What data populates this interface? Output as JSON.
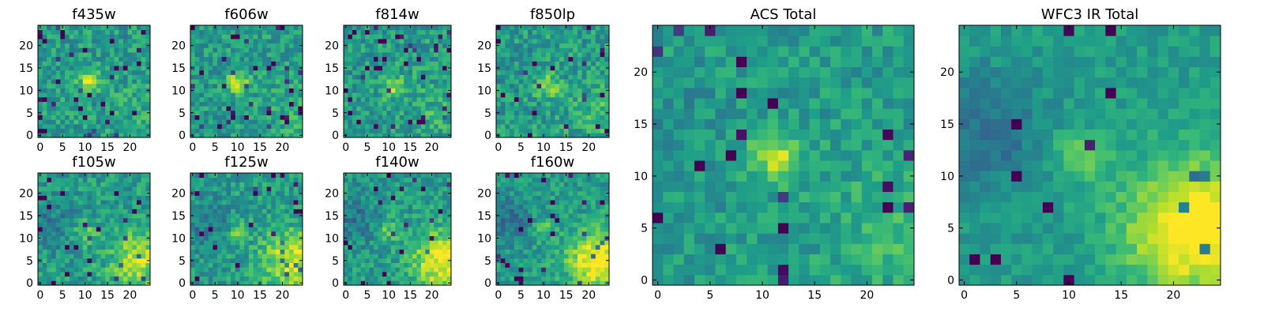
{
  "figure": {
    "colormap": "viridis",
    "image_size": 25
  },
  "chart_data": [
    {
      "type": "heatmap",
      "title": "f435w",
      "xticks": [
        0,
        5,
        10,
        15,
        20
      ],
      "yticks": [
        0,
        5,
        10,
        15,
        20
      ],
      "xlim": [
        0,
        25
      ],
      "ylim": [
        0,
        25
      ],
      "noise": 0.16,
      "bright_spot": [
        11,
        12
      ],
      "bright_strength": 0.35,
      "gradient": 0.05,
      "dark_pixels": 0.05,
      "seed": 11
    },
    {
      "type": "heatmap",
      "title": "f606w",
      "xticks": [
        0,
        5,
        10,
        15,
        20
      ],
      "yticks": [
        0,
        5,
        10,
        15,
        20
      ],
      "xlim": [
        0,
        25
      ],
      "ylim": [
        0,
        25
      ],
      "noise": 0.15,
      "bright_spot": [
        10,
        12
      ],
      "bright_strength": 0.35,
      "gradient": 0.06,
      "dark_pixels": 0.05,
      "seed": 22
    },
    {
      "type": "heatmap",
      "title": "f814w",
      "xticks": [
        0,
        5,
        10,
        15,
        20
      ],
      "yticks": [
        0,
        5,
        10,
        15,
        20
      ],
      "xlim": [
        0,
        25
      ],
      "ylim": [
        0,
        25
      ],
      "noise": 0.16,
      "bright_spot": [
        11,
        11
      ],
      "bright_strength": 0.3,
      "gradient": 0.08,
      "dark_pixels": 0.05,
      "seed": 33
    },
    {
      "type": "heatmap",
      "title": "f850lp",
      "xticks": [
        0,
        5,
        10,
        15,
        20
      ],
      "yticks": [
        0,
        5,
        10,
        15,
        20
      ],
      "xlim": [
        0,
        25
      ],
      "ylim": [
        0,
        25
      ],
      "noise": 0.16,
      "bright_spot": [
        11,
        11
      ],
      "bright_strength": 0.3,
      "gradient": 0.12,
      "dark_pixels": 0.05,
      "seed": 44
    },
    {
      "type": "heatmap",
      "title": "f105w",
      "xticks": [
        0,
        5,
        10,
        15,
        20
      ],
      "yticks": [
        0,
        5,
        10,
        15,
        20
      ],
      "xlim": [
        0,
        25
      ],
      "ylim": [
        0,
        25
      ],
      "noise": 0.15,
      "bright_spot": [
        10,
        11
      ],
      "bright_strength": 0.2,
      "gradient": 0.35,
      "dark_pixels": 0.04,
      "seed": 55
    },
    {
      "type": "heatmap",
      "title": "f125w",
      "xticks": [
        0,
        5,
        10,
        15,
        20
      ],
      "yticks": [
        0,
        5,
        10,
        15,
        20
      ],
      "xlim": [
        0,
        25
      ],
      "ylim": [
        0,
        25
      ],
      "noise": 0.15,
      "bright_spot": [
        10,
        11
      ],
      "bright_strength": 0.2,
      "gradient": 0.4,
      "dark_pixels": 0.04,
      "seed": 66
    },
    {
      "type": "heatmap",
      "title": "f140w",
      "xticks": [
        0,
        5,
        10,
        15,
        20
      ],
      "yticks": [
        0,
        5,
        10,
        15,
        20
      ],
      "xlim": [
        0,
        25
      ],
      "ylim": [
        0,
        25
      ],
      "noise": 0.14,
      "bright_spot": [
        10,
        12
      ],
      "bright_strength": 0.2,
      "gradient": 0.45,
      "dark_pixels": 0.04,
      "seed": 77
    },
    {
      "type": "heatmap",
      "title": "f160w",
      "xticks": [
        0,
        5,
        10,
        15,
        20
      ],
      "yticks": [
        0,
        5,
        10,
        15,
        20
      ],
      "xlim": [
        0,
        25
      ],
      "ylim": [
        0,
        25
      ],
      "noise": 0.13,
      "bright_spot": [
        10,
        12
      ],
      "bright_strength": 0.2,
      "gradient": 0.5,
      "dark_pixels": 0.04,
      "seed": 88
    },
    {
      "type": "heatmap",
      "title": "ACS Total",
      "xticks": [
        0,
        5,
        10,
        15,
        20
      ],
      "yticks": [
        0,
        5,
        10,
        15,
        20
      ],
      "xlim": [
        0,
        25
      ],
      "ylim": [
        0,
        25
      ],
      "noise": 0.12,
      "bright_spot": [
        11,
        12
      ],
      "bright_strength": 0.35,
      "gradient": 0.12,
      "dark_pixels": 0.03,
      "seed": 99
    },
    {
      "type": "heatmap",
      "title": "WFC3 IR Total",
      "xticks": [
        0,
        5,
        10,
        15,
        20
      ],
      "yticks": [
        0,
        5,
        10,
        15,
        20
      ],
      "xlim": [
        0,
        25
      ],
      "ylim": [
        0,
        25
      ],
      "noise": 0.08,
      "bright_spot": [
        11,
        12
      ],
      "bright_strength": 0.25,
      "gradient": 0.55,
      "dark_pixels": 0.02,
      "seed": 111
    }
  ]
}
